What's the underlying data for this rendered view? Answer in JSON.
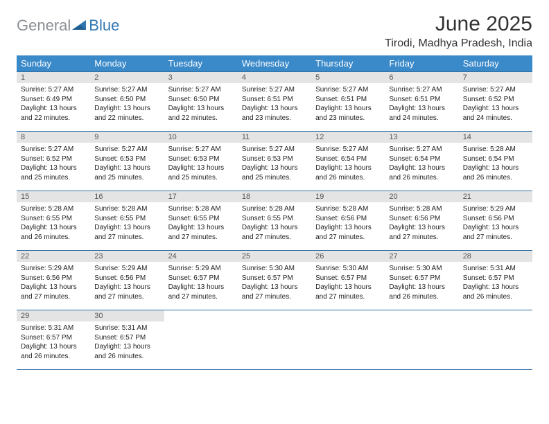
{
  "brand": {
    "part1": "General",
    "part2": "Blue"
  },
  "colors": {
    "header_bg": "#3a89c9",
    "header_text": "#ffffff",
    "row_border": "#2f6fa3",
    "daynum_bg": "#e4e4e4",
    "daynum_text": "#555555",
    "body_text": "#222222",
    "logo_gray": "#8a8f94",
    "logo_blue": "#2f77b3"
  },
  "title": "June 2025",
  "location": "Tirodi, Madhya Pradesh, India",
  "day_names": [
    "Sunday",
    "Monday",
    "Tuesday",
    "Wednesday",
    "Thursday",
    "Friday",
    "Saturday"
  ],
  "labels": {
    "sunrise": "Sunrise:",
    "sunset": "Sunset:",
    "daylight": "Daylight:"
  },
  "weeks": [
    [
      {
        "n": "1",
        "sr": "5:27 AM",
        "ss": "6:49 PM",
        "dl": "13 hours and 22 minutes."
      },
      {
        "n": "2",
        "sr": "5:27 AM",
        "ss": "6:50 PM",
        "dl": "13 hours and 22 minutes."
      },
      {
        "n": "3",
        "sr": "5:27 AM",
        "ss": "6:50 PM",
        "dl": "13 hours and 22 minutes."
      },
      {
        "n": "4",
        "sr": "5:27 AM",
        "ss": "6:51 PM",
        "dl": "13 hours and 23 minutes."
      },
      {
        "n": "5",
        "sr": "5:27 AM",
        "ss": "6:51 PM",
        "dl": "13 hours and 23 minutes."
      },
      {
        "n": "6",
        "sr": "5:27 AM",
        "ss": "6:51 PM",
        "dl": "13 hours and 24 minutes."
      },
      {
        "n": "7",
        "sr": "5:27 AM",
        "ss": "6:52 PM",
        "dl": "13 hours and 24 minutes."
      }
    ],
    [
      {
        "n": "8",
        "sr": "5:27 AM",
        "ss": "6:52 PM",
        "dl": "13 hours and 25 minutes."
      },
      {
        "n": "9",
        "sr": "5:27 AM",
        "ss": "6:53 PM",
        "dl": "13 hours and 25 minutes."
      },
      {
        "n": "10",
        "sr": "5:27 AM",
        "ss": "6:53 PM",
        "dl": "13 hours and 25 minutes."
      },
      {
        "n": "11",
        "sr": "5:27 AM",
        "ss": "6:53 PM",
        "dl": "13 hours and 25 minutes."
      },
      {
        "n": "12",
        "sr": "5:27 AM",
        "ss": "6:54 PM",
        "dl": "13 hours and 26 minutes."
      },
      {
        "n": "13",
        "sr": "5:27 AM",
        "ss": "6:54 PM",
        "dl": "13 hours and 26 minutes."
      },
      {
        "n": "14",
        "sr": "5:28 AM",
        "ss": "6:54 PM",
        "dl": "13 hours and 26 minutes."
      }
    ],
    [
      {
        "n": "15",
        "sr": "5:28 AM",
        "ss": "6:55 PM",
        "dl": "13 hours and 26 minutes."
      },
      {
        "n": "16",
        "sr": "5:28 AM",
        "ss": "6:55 PM",
        "dl": "13 hours and 27 minutes."
      },
      {
        "n": "17",
        "sr": "5:28 AM",
        "ss": "6:55 PM",
        "dl": "13 hours and 27 minutes."
      },
      {
        "n": "18",
        "sr": "5:28 AM",
        "ss": "6:55 PM",
        "dl": "13 hours and 27 minutes."
      },
      {
        "n": "19",
        "sr": "5:28 AM",
        "ss": "6:56 PM",
        "dl": "13 hours and 27 minutes."
      },
      {
        "n": "20",
        "sr": "5:28 AM",
        "ss": "6:56 PM",
        "dl": "13 hours and 27 minutes."
      },
      {
        "n": "21",
        "sr": "5:29 AM",
        "ss": "6:56 PM",
        "dl": "13 hours and 27 minutes."
      }
    ],
    [
      {
        "n": "22",
        "sr": "5:29 AM",
        "ss": "6:56 PM",
        "dl": "13 hours and 27 minutes."
      },
      {
        "n": "23",
        "sr": "5:29 AM",
        "ss": "6:56 PM",
        "dl": "13 hours and 27 minutes."
      },
      {
        "n": "24",
        "sr": "5:29 AM",
        "ss": "6:57 PM",
        "dl": "13 hours and 27 minutes."
      },
      {
        "n": "25",
        "sr": "5:30 AM",
        "ss": "6:57 PM",
        "dl": "13 hours and 27 minutes."
      },
      {
        "n": "26",
        "sr": "5:30 AM",
        "ss": "6:57 PM",
        "dl": "13 hours and 27 minutes."
      },
      {
        "n": "27",
        "sr": "5:30 AM",
        "ss": "6:57 PM",
        "dl": "13 hours and 26 minutes."
      },
      {
        "n": "28",
        "sr": "5:31 AM",
        "ss": "6:57 PM",
        "dl": "13 hours and 26 minutes."
      }
    ],
    [
      {
        "n": "29",
        "sr": "5:31 AM",
        "ss": "6:57 PM",
        "dl": "13 hours and 26 minutes."
      },
      {
        "n": "30",
        "sr": "5:31 AM",
        "ss": "6:57 PM",
        "dl": "13 hours and 26 minutes."
      },
      null,
      null,
      null,
      null,
      null
    ]
  ]
}
